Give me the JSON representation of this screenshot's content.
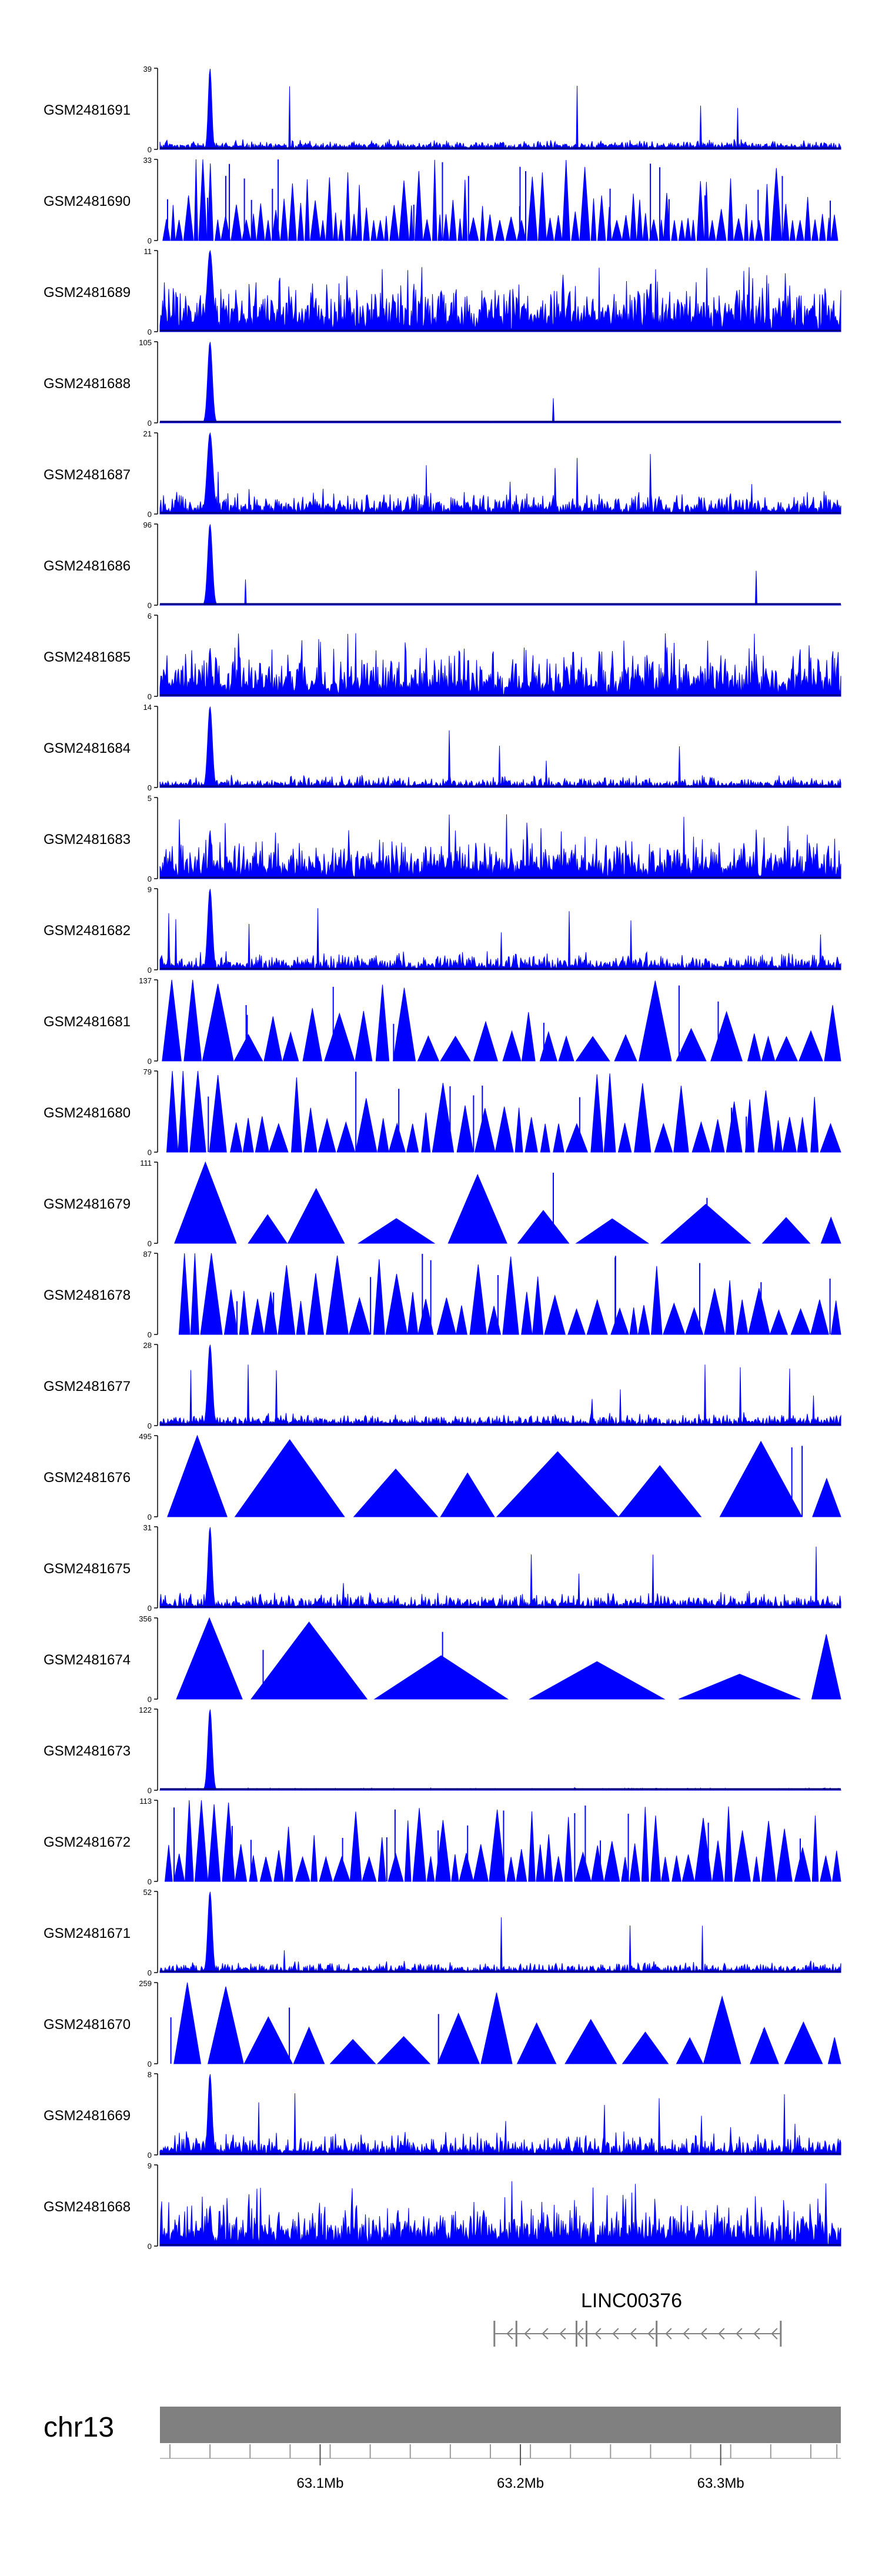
{
  "chart_data": {
    "type": "area",
    "genome_track_figure": true,
    "chromosome": "chr13",
    "x_axis": {
      "unit": "Mb",
      "range": [
        63.02,
        63.36
      ],
      "labels": [
        {
          "value": 63.1,
          "text": "63.1Mb"
        },
        {
          "value": 63.2,
          "text": "63.2Mb"
        },
        {
          "value": 63.3,
          "text": "63.3Mb"
        }
      ],
      "minor_ticks": [
        63.025,
        63.045,
        63.065,
        63.085,
        63.105,
        63.125,
        63.145,
        63.165,
        63.185,
        63.205,
        63.225,
        63.245,
        63.265,
        63.285,
        63.305,
        63.325,
        63.345,
        63.358
      ]
    },
    "peak_center": 63.045,
    "tracks": [
      {
        "name": "GSM2481691",
        "ymin": 0,
        "ymax": 39,
        "style": "noise",
        "base": 0.05,
        "noise": 0.09,
        "spike_prob": 0.006,
        "peak": 1.0,
        "peak_width": 0.0012,
        "seed": 11
      },
      {
        "name": "GSM2481690",
        "ymin": 0,
        "ymax": 33,
        "style": "triangles",
        "min_h": 0.25,
        "max_h": 1.0,
        "tri_count": 95,
        "seed": 12
      },
      {
        "name": "GSM2481689",
        "ymin": 0,
        "ymax": 11,
        "style": "noise",
        "base": 0.2,
        "noise": 0.55,
        "spike_prob": 0.03,
        "peak": 1.0,
        "peak_width": 0.002,
        "seed": 13
      },
      {
        "name": "GSM2481688",
        "ymin": 0,
        "ymax": 105,
        "style": "noise",
        "base": 0.004,
        "noise": 0.02,
        "spike_prob": 0.001,
        "peak": 1.0,
        "peak_width": 0.0016,
        "seed": 14
      },
      {
        "name": "GSM2481687",
        "ymin": 0,
        "ymax": 21,
        "style": "noise",
        "base": 0.06,
        "noise": 0.28,
        "spike_prob": 0.01,
        "peak": 1.0,
        "peak_width": 0.002,
        "seed": 15
      },
      {
        "name": "GSM2481686",
        "ymin": 0,
        "ymax": 96,
        "style": "noise",
        "base": 0.004,
        "noise": 0.02,
        "spike_prob": 0.001,
        "peak": 1.0,
        "peak_width": 0.0016,
        "seed": 16
      },
      {
        "name": "GSM2481685",
        "ymin": 0,
        "ymax": 6,
        "style": "noise",
        "base": 0.15,
        "noise": 0.55,
        "spike_prob": 0.06,
        "peak": 0.6,
        "peak_width": 0.001,
        "seed": 17
      },
      {
        "name": "GSM2481684",
        "ymin": 0,
        "ymax": 14,
        "style": "noise",
        "base": 0.03,
        "noise": 0.14,
        "spike_prob": 0.008,
        "peak": 1.0,
        "peak_width": 0.0016,
        "seed": 18
      },
      {
        "name": "GSM2481683",
        "ymin": 0,
        "ymax": 5,
        "style": "noise",
        "base": 0.15,
        "noise": 0.45,
        "spike_prob": 0.05,
        "peak": 0.6,
        "peak_width": 0.001,
        "seed": 19
      },
      {
        "name": "GSM2481682",
        "ymin": 0,
        "ymax": 9,
        "style": "noise",
        "base": 0.05,
        "noise": 0.2,
        "spike_prob": 0.01,
        "peak": 1.0,
        "peak_width": 0.0016,
        "seed": 20
      },
      {
        "name": "GSM2481681",
        "ymin": 0,
        "ymax": 137,
        "style": "triangles",
        "min_h": 0.3,
        "max_h": 1.0,
        "tri_count": 30,
        "seed": 21
      },
      {
        "name": "GSM2481680",
        "ymin": 0,
        "ymax": 79,
        "style": "triangles",
        "min_h": 0.35,
        "max_h": 1.0,
        "tri_count": 45,
        "seed": 22
      },
      {
        "name": "GSM2481679",
        "ymin": 0,
        "ymax": 111,
        "style": "triangles",
        "min_h": 0.3,
        "max_h": 1.0,
        "tri_count": 9,
        "seed": 23
      },
      {
        "name": "GSM2481678",
        "ymin": 0,
        "ymax": 87,
        "style": "triangles",
        "min_h": 0.3,
        "max_h": 1.0,
        "tri_count": 45,
        "seed": 24
      },
      {
        "name": "GSM2481677",
        "ymin": 0,
        "ymax": 28,
        "style": "noise",
        "base": 0.04,
        "noise": 0.14,
        "spike_prob": 0.006,
        "peak": 1.0,
        "peak_width": 0.0016,
        "seed": 25
      },
      {
        "name": "GSM2481676",
        "ymin": 0,
        "ymax": 495,
        "style": "triangles",
        "min_h": 0.2,
        "max_h": 1.0,
        "tri_count": 8,
        "seed": 26
      },
      {
        "name": "GSM2481675",
        "ymin": 0,
        "ymax": 31,
        "style": "noise",
        "base": 0.04,
        "noise": 0.18,
        "spike_prob": 0.01,
        "peak": 1.0,
        "peak_width": 0.0014,
        "seed": 27
      },
      {
        "name": "GSM2481674",
        "ymin": 0,
        "ymax": 356,
        "style": "triangles",
        "min_h": 0.25,
        "max_h": 1.0,
        "tri_count": 7,
        "seed": 28
      },
      {
        "name": "GSM2481673",
        "ymin": 0,
        "ymax": 122,
        "style": "noise",
        "base": 0.005,
        "noise": 0.03,
        "spike_prob": 0.002,
        "peak": 1.0,
        "peak_width": 0.0015,
        "seed": 29
      },
      {
        "name": "GSM2481672",
        "ymin": 0,
        "ymax": 113,
        "style": "triangles",
        "min_h": 0.3,
        "max_h": 1.0,
        "tri_count": 60,
        "seed": 30
      },
      {
        "name": "GSM2481671",
        "ymin": 0,
        "ymax": 52,
        "style": "noise",
        "base": 0.03,
        "noise": 0.13,
        "spike_prob": 0.008,
        "peak": 1.0,
        "peak_width": 0.0015,
        "seed": 31
      },
      {
        "name": "GSM2481670",
        "ymin": 0,
        "ymax": 259,
        "style": "triangles",
        "min_h": 0.3,
        "max_h": 1.0,
        "tri_count": 16,
        "seed": 32
      },
      {
        "name": "GSM2481669",
        "ymin": 0,
        "ymax": 8,
        "style": "noise",
        "base": 0.05,
        "noise": 0.28,
        "spike_prob": 0.02,
        "peak": 1.0,
        "peak_width": 0.0014,
        "seed": 33
      },
      {
        "name": "GSM2481668",
        "ymin": 0,
        "ymax": 9,
        "style": "noise",
        "base": 0.2,
        "noise": 0.45,
        "spike_prob": 0.05,
        "peak": 0.5,
        "peak_width": 0.001,
        "seed": 34
      }
    ],
    "gene": {
      "name": "LINC00376",
      "start": 63.187,
      "end": 63.33,
      "strand": "-",
      "exons": [
        63.187,
        63.198,
        63.228,
        63.233,
        63.268,
        63.33
      ]
    },
    "colors": {
      "signal": "#0000ff",
      "axis": "#000000",
      "ideogram": "#808080",
      "gene": "#808080"
    }
  }
}
